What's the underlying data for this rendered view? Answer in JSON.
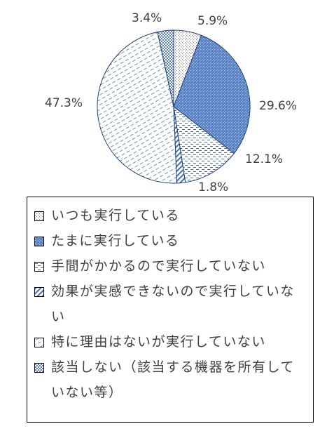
{
  "chart_data": {
    "type": "pie",
    "slices": [
      {
        "label": "いつも実行している",
        "value": 5.9,
        "label_text": "5.9%",
        "pattern": "dots-grey",
        "color": "#ffffff"
      },
      {
        "label": "たまに実行している",
        "value": 29.6,
        "label_text": "29.6%",
        "pattern": "dots-blue",
        "color": "#5b8bd6"
      },
      {
        "label": "手間がかかるので実行していない",
        "value": 12.1,
        "label_text": "12.1%",
        "pattern": "dashes-blue",
        "color": "#ffffff"
      },
      {
        "label": "効果が実感できないので実行していない",
        "value": 1.8,
        "label_text": "1.8%",
        "pattern": "diagonal-blue",
        "color": "#ffffff"
      },
      {
        "label": "特に理由はないが実行していない",
        "value": 47.3,
        "label_text": "47.3%",
        "pattern": "diagonal-dash-blue",
        "color": "#ffffff"
      },
      {
        "label": "該当しない（該当する機器を所有していない等）",
        "value": 3.4,
        "label_text": "3.4%",
        "pattern": "checker-blue",
        "color": "#ffffff"
      }
    ],
    "legend_position": "bottom",
    "start_angle_deg": 0,
    "direction": "clockwise"
  }
}
